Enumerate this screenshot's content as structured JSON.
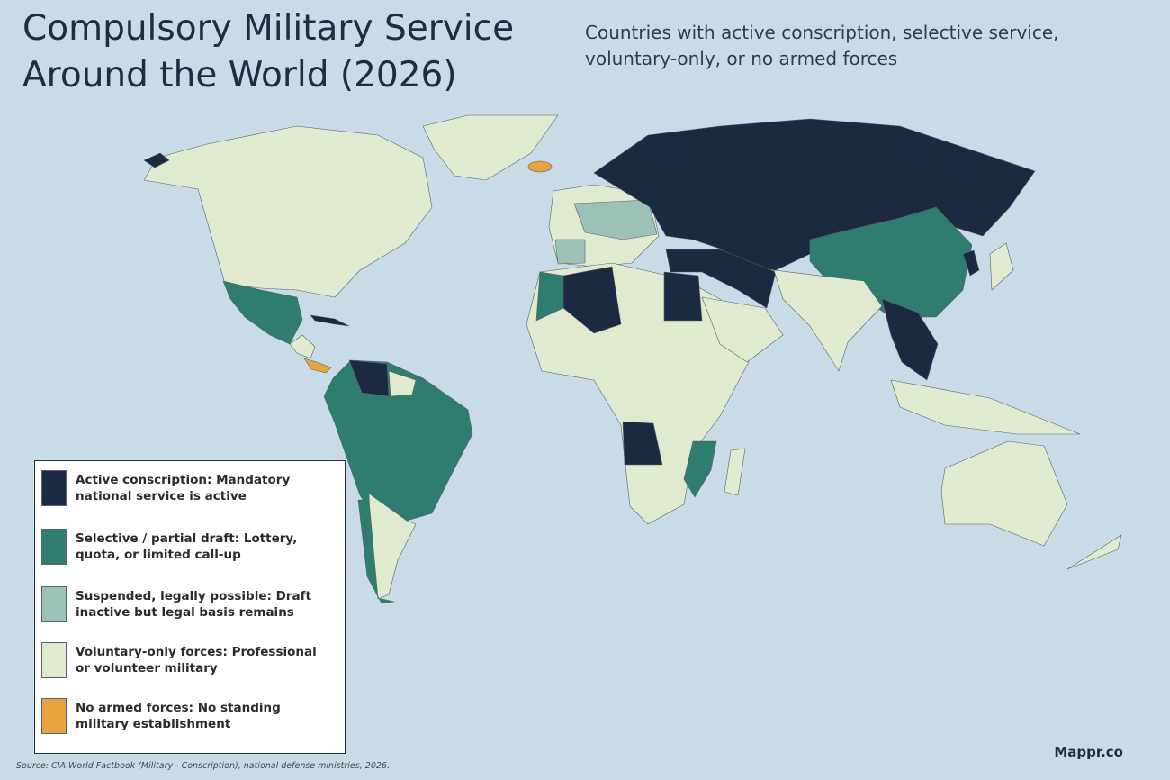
{
  "header": {
    "title": "Compulsory Military Service Around the World (2026)",
    "subtitle": "Countries with active conscription, selective service, voluntary-only, or no armed forces"
  },
  "legend": {
    "items": [
      {
        "label": "Active conscription: Mandatory national service is active",
        "color": "#1b2a40"
      },
      {
        "label": "Selective / partial draft: Lottery, quota, or limited call-up",
        "color": "#2e7d6e"
      },
      {
        "label": "Suspended, legally possible: Draft inactive but legal basis remains",
        "color": "#9cc1b7"
      },
      {
        "label": "Voluntary-only forces: Professional or volunteer military",
        "color": "#dfeacf"
      },
      {
        "label": "No armed forces: No standing military establishment",
        "color": "#e8a23e"
      }
    ]
  },
  "footer": {
    "source": "Source: CIA World Factbook (Military - Conscription), national defense ministries, 2026.",
    "brand": "Mappr.co"
  }
}
